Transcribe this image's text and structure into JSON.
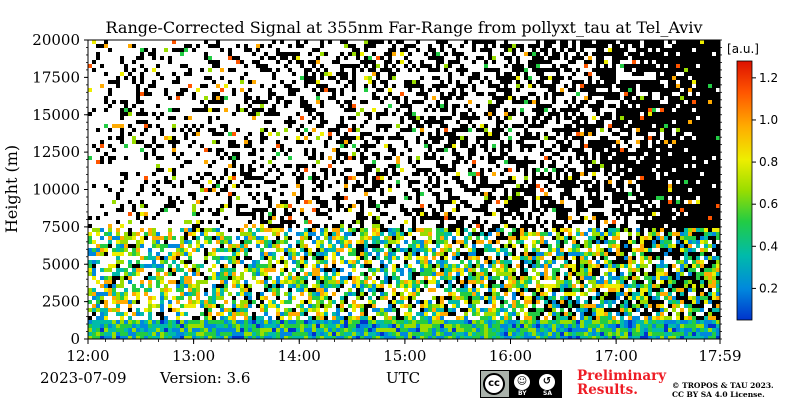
{
  "chart_data": {
    "type": "heatmap",
    "title": "Range-Corrected Signal at 355nm Far-Range from pollyxt_tau at Tel_Aviv",
    "xlabel": "UTC",
    "ylabel": "Height (m)",
    "x_ticks": [
      "12:00",
      "13:00",
      "14:00",
      "15:00",
      "16:00",
      "17:00",
      "17:59"
    ],
    "x_range": [
      "12:00",
      "17:59"
    ],
    "y_ticks": [
      0,
      2500,
      5000,
      7500,
      10000,
      12500,
      15000,
      17500,
      20000
    ],
    "ylim": [
      0,
      20000
    ],
    "colorbar": {
      "unit": "[a.u.]",
      "range": [
        0.05,
        1.28
      ],
      "ticks": [
        0.2,
        0.4,
        0.6,
        0.8,
        1.0,
        1.2
      ],
      "tick_labels": [
        "0.2",
        "0.4",
        "0.6",
        "0.8",
        "1.0",
        "1.2"
      ],
      "colors": [
        "#0033cc",
        "#0088dd",
        "#00bbaa",
        "#22cc44",
        "#99dd00",
        "#eeee00",
        "#ffaa00",
        "#ff5500",
        "#dd1100"
      ]
    },
    "features": {
      "near_surface_layer_top_m": 1500,
      "aerosol_layer_top_m": 7500,
      "signal_missing_after": "16:45"
    }
  },
  "footer": {
    "date": "2023-07-09",
    "version": "Version: 3.6",
    "axis_unit": "UTC",
    "preliminary_line1": "Preliminary",
    "preliminary_line2": "Results.",
    "copyright_line1": "© TROPOS & TAU 2023.",
    "copyright_line2": "CC BY SA 4.0 License.",
    "license_badge": {
      "cc": "cc",
      "by": "BY",
      "sa": "SA"
    }
  }
}
